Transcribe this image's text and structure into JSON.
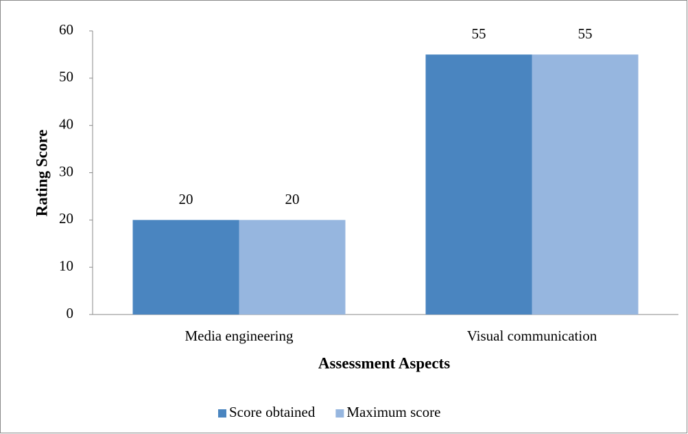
{
  "chart_data": {
    "type": "bar",
    "x_label": "Assessment Aspects",
    "y_label": "Rating Score",
    "categories": [
      "Media engineering",
      "Visual communication"
    ],
    "series": [
      {
        "name": "Score obtained",
        "color": "#4a85c0",
        "values": [
          20,
          55
        ]
      },
      {
        "name": "Maximum score",
        "color": "#96b6df",
        "values": [
          20,
          55
        ]
      }
    ],
    "ylim": [
      0,
      60
    ],
    "yticks": [
      0,
      10,
      20,
      30,
      40,
      50,
      60
    ],
    "grid": false,
    "legend": "bottom",
    "data_labels": true
  }
}
